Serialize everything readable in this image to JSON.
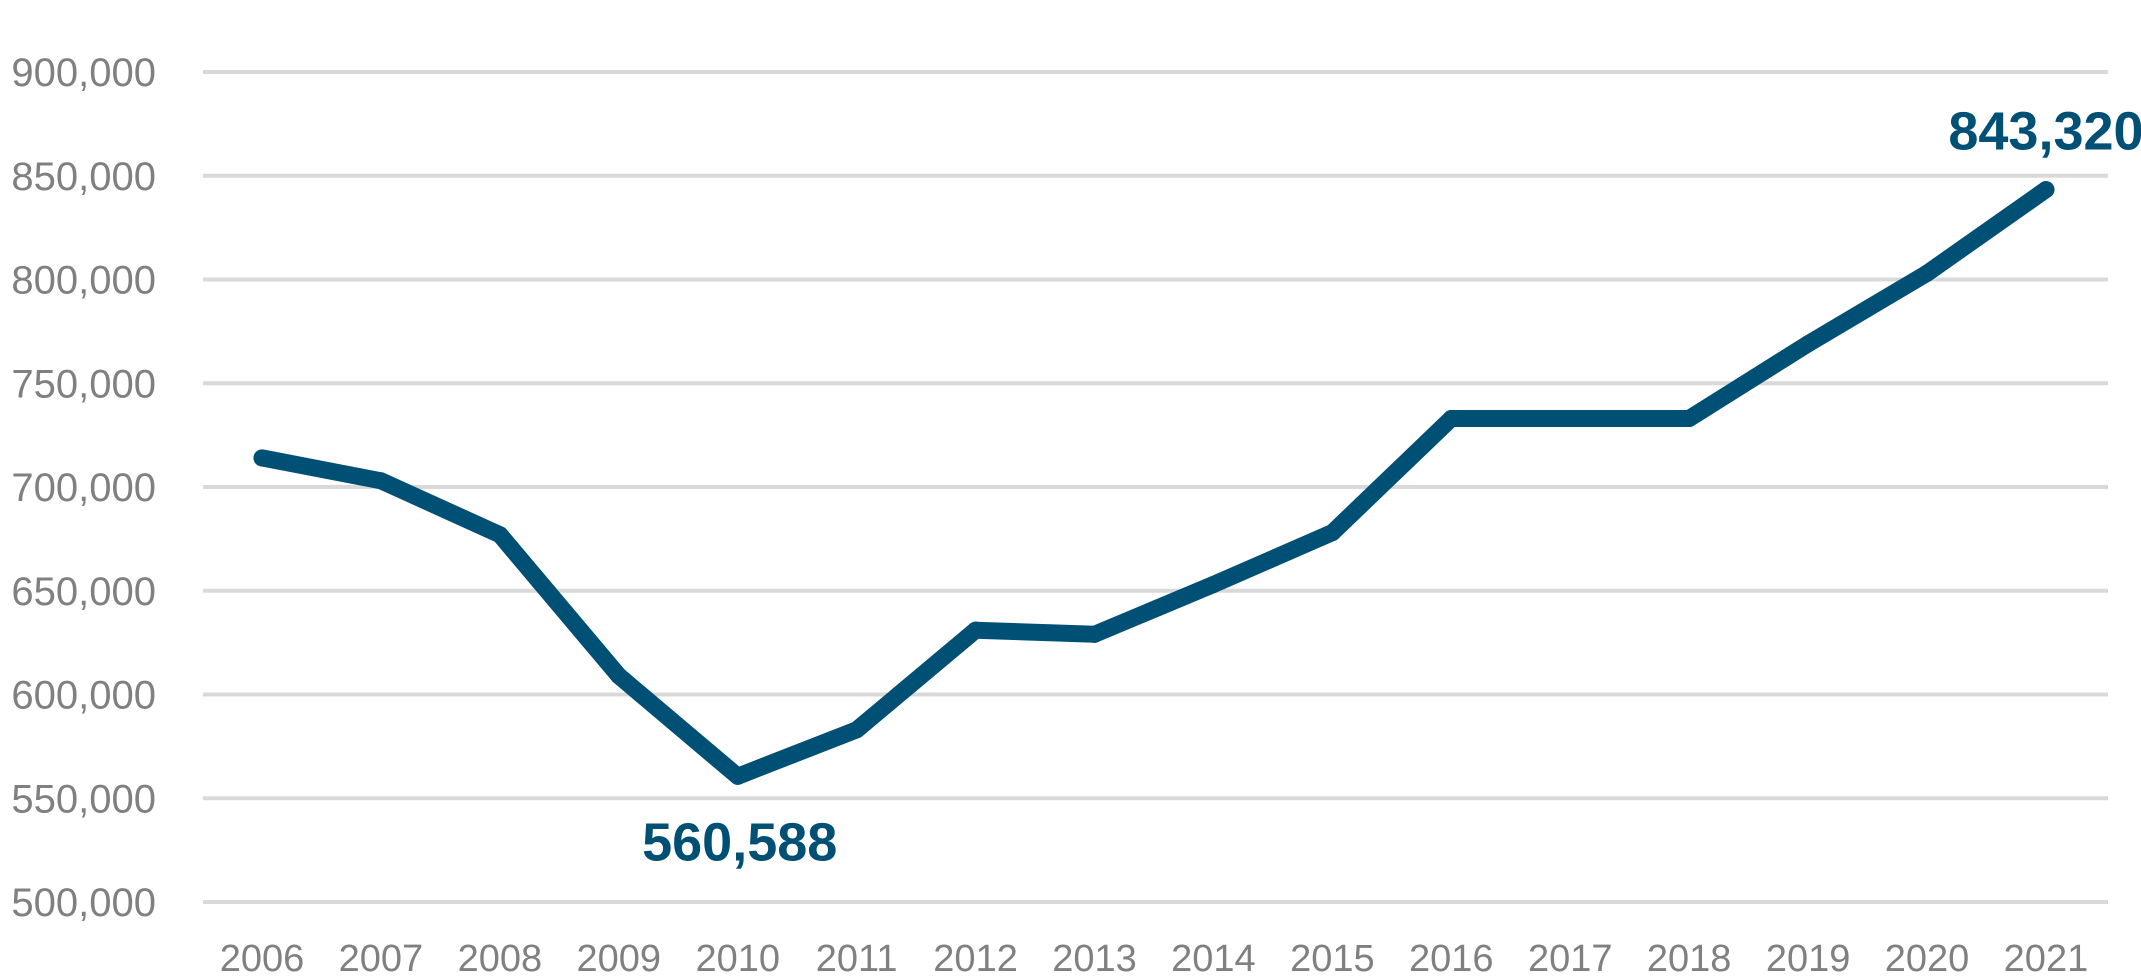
{
  "chart_data": {
    "type": "line",
    "title": "",
    "xlabel": "",
    "ylabel": "",
    "x": [
      "2006",
      "2007",
      "2008",
      "2009",
      "2010",
      "2011",
      "2012",
      "2013",
      "2014",
      "2015",
      "2016",
      "2017",
      "2018",
      "2019",
      "2020",
      "2021"
    ],
    "series": [
      {
        "values": [
          714000,
          703000,
          677000,
          609000,
          560588,
          583000,
          631000,
          629000,
          653000,
          678000,
          733000,
          733000,
          733000,
          769000,
          803000,
          843320
        ]
      }
    ],
    "ylim": [
      500000,
      900000
    ],
    "y_ticks": [
      500000,
      550000,
      600000,
      650000,
      700000,
      750000,
      800000,
      850000,
      900000
    ],
    "y_tick_labels": [
      "500,000",
      "550,000",
      "600,000",
      "650,000",
      "700,000",
      "750,000",
      "800,000",
      "850,000",
      "900,000"
    ],
    "grid": true,
    "legend": "none",
    "line_color": "#004f74",
    "annotations": [
      {
        "x": "2010",
        "value": 560588,
        "text": "560,588",
        "position": "below"
      },
      {
        "x": "2021",
        "value": 843320,
        "text": "843,320",
        "position": "above"
      }
    ]
  }
}
